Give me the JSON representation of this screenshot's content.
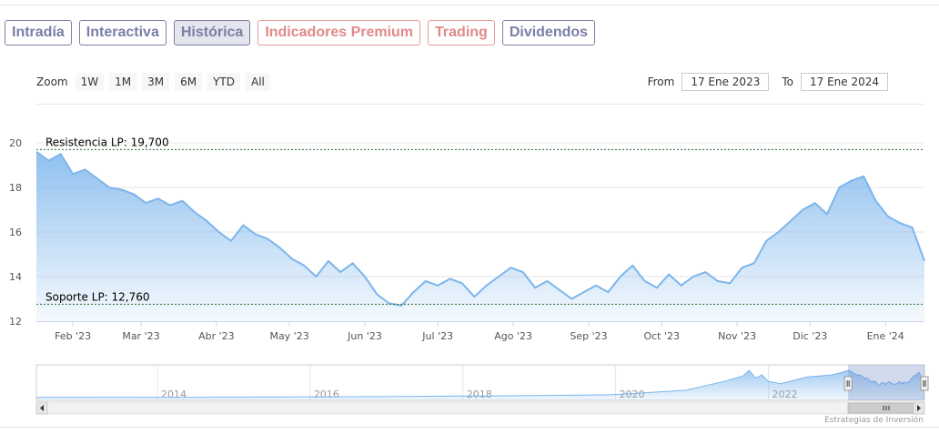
{
  "tabs": [
    {
      "label": "Intradía",
      "active": false,
      "premium": false
    },
    {
      "label": "Interactiva",
      "active": false,
      "premium": false
    },
    {
      "label": "Histórica",
      "active": true,
      "premium": false
    },
    {
      "label": "Indicadores Premium",
      "active": false,
      "premium": true
    },
    {
      "label": "Trading",
      "active": false,
      "premium": true
    },
    {
      "label": "Dividendos",
      "active": false,
      "premium": false
    }
  ],
  "zoom": {
    "label": "Zoom",
    "buttons": [
      "1W",
      "1M",
      "3M",
      "6M",
      "YTD",
      "All"
    ]
  },
  "range": {
    "from_label": "From",
    "from_value": "17 Ene 2023",
    "to_label": "To",
    "to_value": "17 Ene 2024"
  },
  "credit": "Estrategias de Inversión",
  "colors": {
    "line": "#7cb5ec",
    "fill_top": "#8fbef0",
    "accent": "#7b7fa6",
    "premium": "#e08a88",
    "level_line": "#2f6b2f"
  },
  "chart_data": {
    "type": "area",
    "y_ticks": [
      12,
      14,
      16,
      18,
      20
    ],
    "ylim": [
      12,
      20
    ],
    "x_ticks": [
      "Feb '23",
      "Mar '23",
      "Abr '23",
      "May '23",
      "Jun '23",
      "Jul '23",
      "Ago '23",
      "Sep '23",
      "Oct '23",
      "Nov '23",
      "Dic '23",
      "Ene '24"
    ],
    "xlim": [
      "2023-01-17",
      "2024-01-17"
    ],
    "levels": [
      {
        "label": "Resistencia LP: 19,700",
        "value": 19.7
      },
      {
        "label": "Soporte LP: 12,760",
        "value": 12.76
      }
    ],
    "series": [
      {
        "points": [
          [
            "2023-01-17",
            19.6
          ],
          [
            "2023-01-22",
            19.2
          ],
          [
            "2023-01-27",
            19.5
          ],
          [
            "2023-02-01",
            18.6
          ],
          [
            "2023-02-06",
            18.8
          ],
          [
            "2023-02-11",
            18.4
          ],
          [
            "2023-02-16",
            18.0
          ],
          [
            "2023-02-21",
            17.9
          ],
          [
            "2023-02-26",
            17.7
          ],
          [
            "2023-03-03",
            17.3
          ],
          [
            "2023-03-08",
            17.5
          ],
          [
            "2023-03-13",
            17.2
          ],
          [
            "2023-03-18",
            17.4
          ],
          [
            "2023-03-23",
            16.9
          ],
          [
            "2023-03-28",
            16.5
          ],
          [
            "2023-04-02",
            16.0
          ],
          [
            "2023-04-07",
            15.6
          ],
          [
            "2023-04-12",
            16.3
          ],
          [
            "2023-04-17",
            15.9
          ],
          [
            "2023-04-22",
            15.7
          ],
          [
            "2023-04-27",
            15.3
          ],
          [
            "2023-05-02",
            14.8
          ],
          [
            "2023-05-07",
            14.5
          ],
          [
            "2023-05-12",
            14.0
          ],
          [
            "2023-05-17",
            14.7
          ],
          [
            "2023-05-22",
            14.2
          ],
          [
            "2023-05-27",
            14.6
          ],
          [
            "2023-06-01",
            14.0
          ],
          [
            "2023-06-06",
            13.2
          ],
          [
            "2023-06-11",
            12.8
          ],
          [
            "2023-06-16",
            12.7
          ],
          [
            "2023-06-21",
            13.3
          ],
          [
            "2023-06-26",
            13.8
          ],
          [
            "2023-07-01",
            13.6
          ],
          [
            "2023-07-06",
            13.9
          ],
          [
            "2023-07-11",
            13.7
          ],
          [
            "2023-07-16",
            13.1
          ],
          [
            "2023-07-21",
            13.6
          ],
          [
            "2023-07-26",
            14.0
          ],
          [
            "2023-07-31",
            14.4
          ],
          [
            "2023-08-05",
            14.2
          ],
          [
            "2023-08-10",
            13.5
          ],
          [
            "2023-08-15",
            13.8
          ],
          [
            "2023-08-20",
            13.4
          ],
          [
            "2023-08-25",
            13.0
          ],
          [
            "2023-08-30",
            13.3
          ],
          [
            "2023-09-04",
            13.6
          ],
          [
            "2023-09-09",
            13.3
          ],
          [
            "2023-09-14",
            14.0
          ],
          [
            "2023-09-19",
            14.5
          ],
          [
            "2023-09-24",
            13.8
          ],
          [
            "2023-09-29",
            13.5
          ],
          [
            "2023-10-04",
            14.1
          ],
          [
            "2023-10-09",
            13.6
          ],
          [
            "2023-10-14",
            14.0
          ],
          [
            "2023-10-19",
            14.2
          ],
          [
            "2023-10-24",
            13.8
          ],
          [
            "2023-10-29",
            13.7
          ],
          [
            "2023-11-03",
            14.4
          ],
          [
            "2023-11-08",
            14.6
          ],
          [
            "2023-11-13",
            15.6
          ],
          [
            "2023-11-18",
            16.0
          ],
          [
            "2023-11-23",
            16.5
          ],
          [
            "2023-11-28",
            17.0
          ],
          [
            "2023-12-03",
            17.3
          ],
          [
            "2023-12-08",
            16.8
          ],
          [
            "2023-12-13",
            18.0
          ],
          [
            "2023-12-18",
            18.3
          ],
          [
            "2023-12-23",
            18.5
          ],
          [
            "2023-12-28",
            17.4
          ],
          [
            "2024-01-02",
            16.7
          ],
          [
            "2024-01-07",
            16.4
          ],
          [
            "2024-01-12",
            16.2
          ],
          [
            "2024-01-17",
            14.7
          ]
        ]
      }
    ],
    "navigator": {
      "x_ticks": [
        "2014",
        "2016",
        "2018",
        "2020",
        "2022"
      ],
      "xlim": [
        "2012-06-01",
        "2024-01-17"
      ]
    }
  }
}
